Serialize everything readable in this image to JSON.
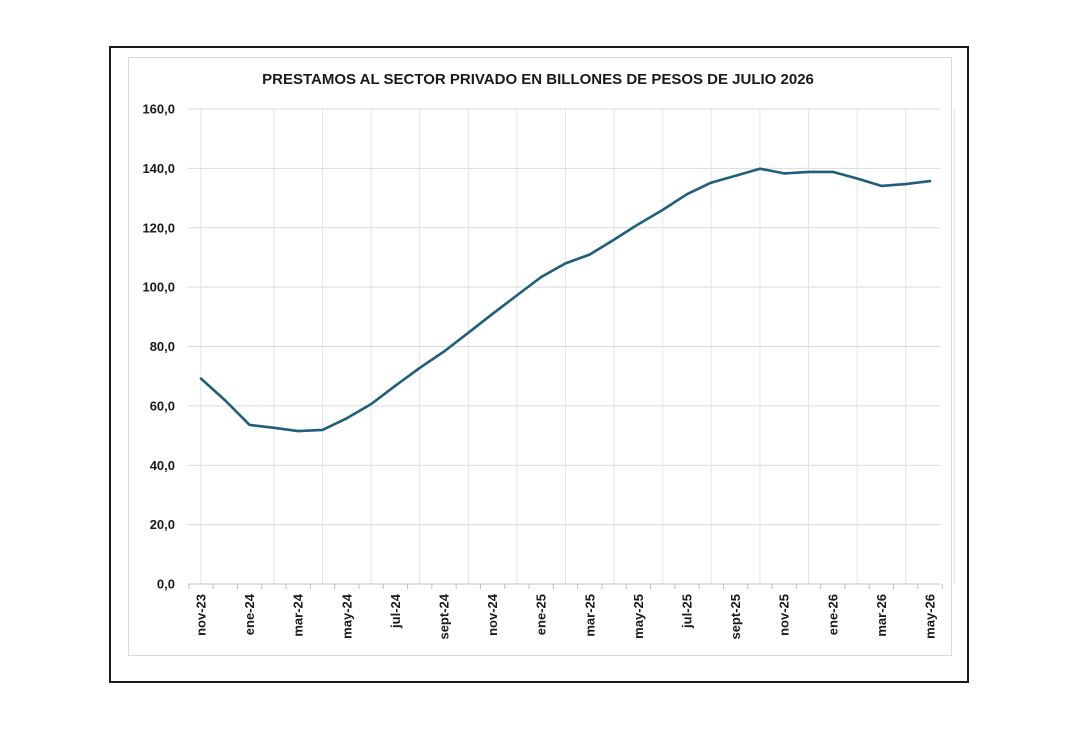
{
  "chart_data": {
    "type": "line",
    "title": "PRESTAMOS  AL SECTOR PRIVADO  EN BILLONES  DE PESOS  DE JULIO  2026",
    "xlabel": "",
    "ylabel": "",
    "ylim": [
      0,
      160
    ],
    "y_ticks": [
      "160,0",
      "140,0",
      "120,0",
      "100,0",
      "80,0",
      "60,0",
      "40,0",
      "20,0",
      "0,0"
    ],
    "x_tick_labels": [
      "nov-23",
      "ene-24",
      "mar-24",
      "may-24",
      "jul-24",
      "sept-24",
      "nov-24",
      "ene-25",
      "mar-25",
      "may-25",
      "jul-25",
      "sept-25",
      "nov-25",
      "ene-26",
      "mar-26",
      "may-26"
    ],
    "grid": true,
    "legend": "none",
    "line_color": "#1f5f7a",
    "series": [
      {
        "x": [
          "nov-23",
          "dic-23",
          "ene-24",
          "feb-24",
          "mar-24",
          "abr-24",
          "may-24",
          "jun-24",
          "jul-24",
          "ago-24",
          "sept-24",
          "oct-24",
          "nov-24",
          "dic-24",
          "ene-25",
          "feb-25",
          "mar-25",
          "abr-25",
          "may-25",
          "jun-25",
          "jul-25",
          "ago-25",
          "sept-25",
          "oct-25",
          "nov-25",
          "dic-25",
          "ene-26",
          "feb-26",
          "mar-26",
          "abr-26",
          "may-26"
        ],
        "values": [
          69.2,
          61.8,
          53.6,
          52.6,
          51.5,
          51.9,
          55.8,
          60.6,
          66.8,
          72.8,
          78.3,
          84.6,
          91.0,
          97.2,
          103.4,
          108.0,
          111.0,
          116.0,
          121.2,
          126.0,
          131.3,
          135.2,
          137.5,
          139.9,
          138.3,
          138.8,
          138.8,
          136.6,
          134.1,
          134.7,
          135.7
        ]
      }
    ]
  }
}
